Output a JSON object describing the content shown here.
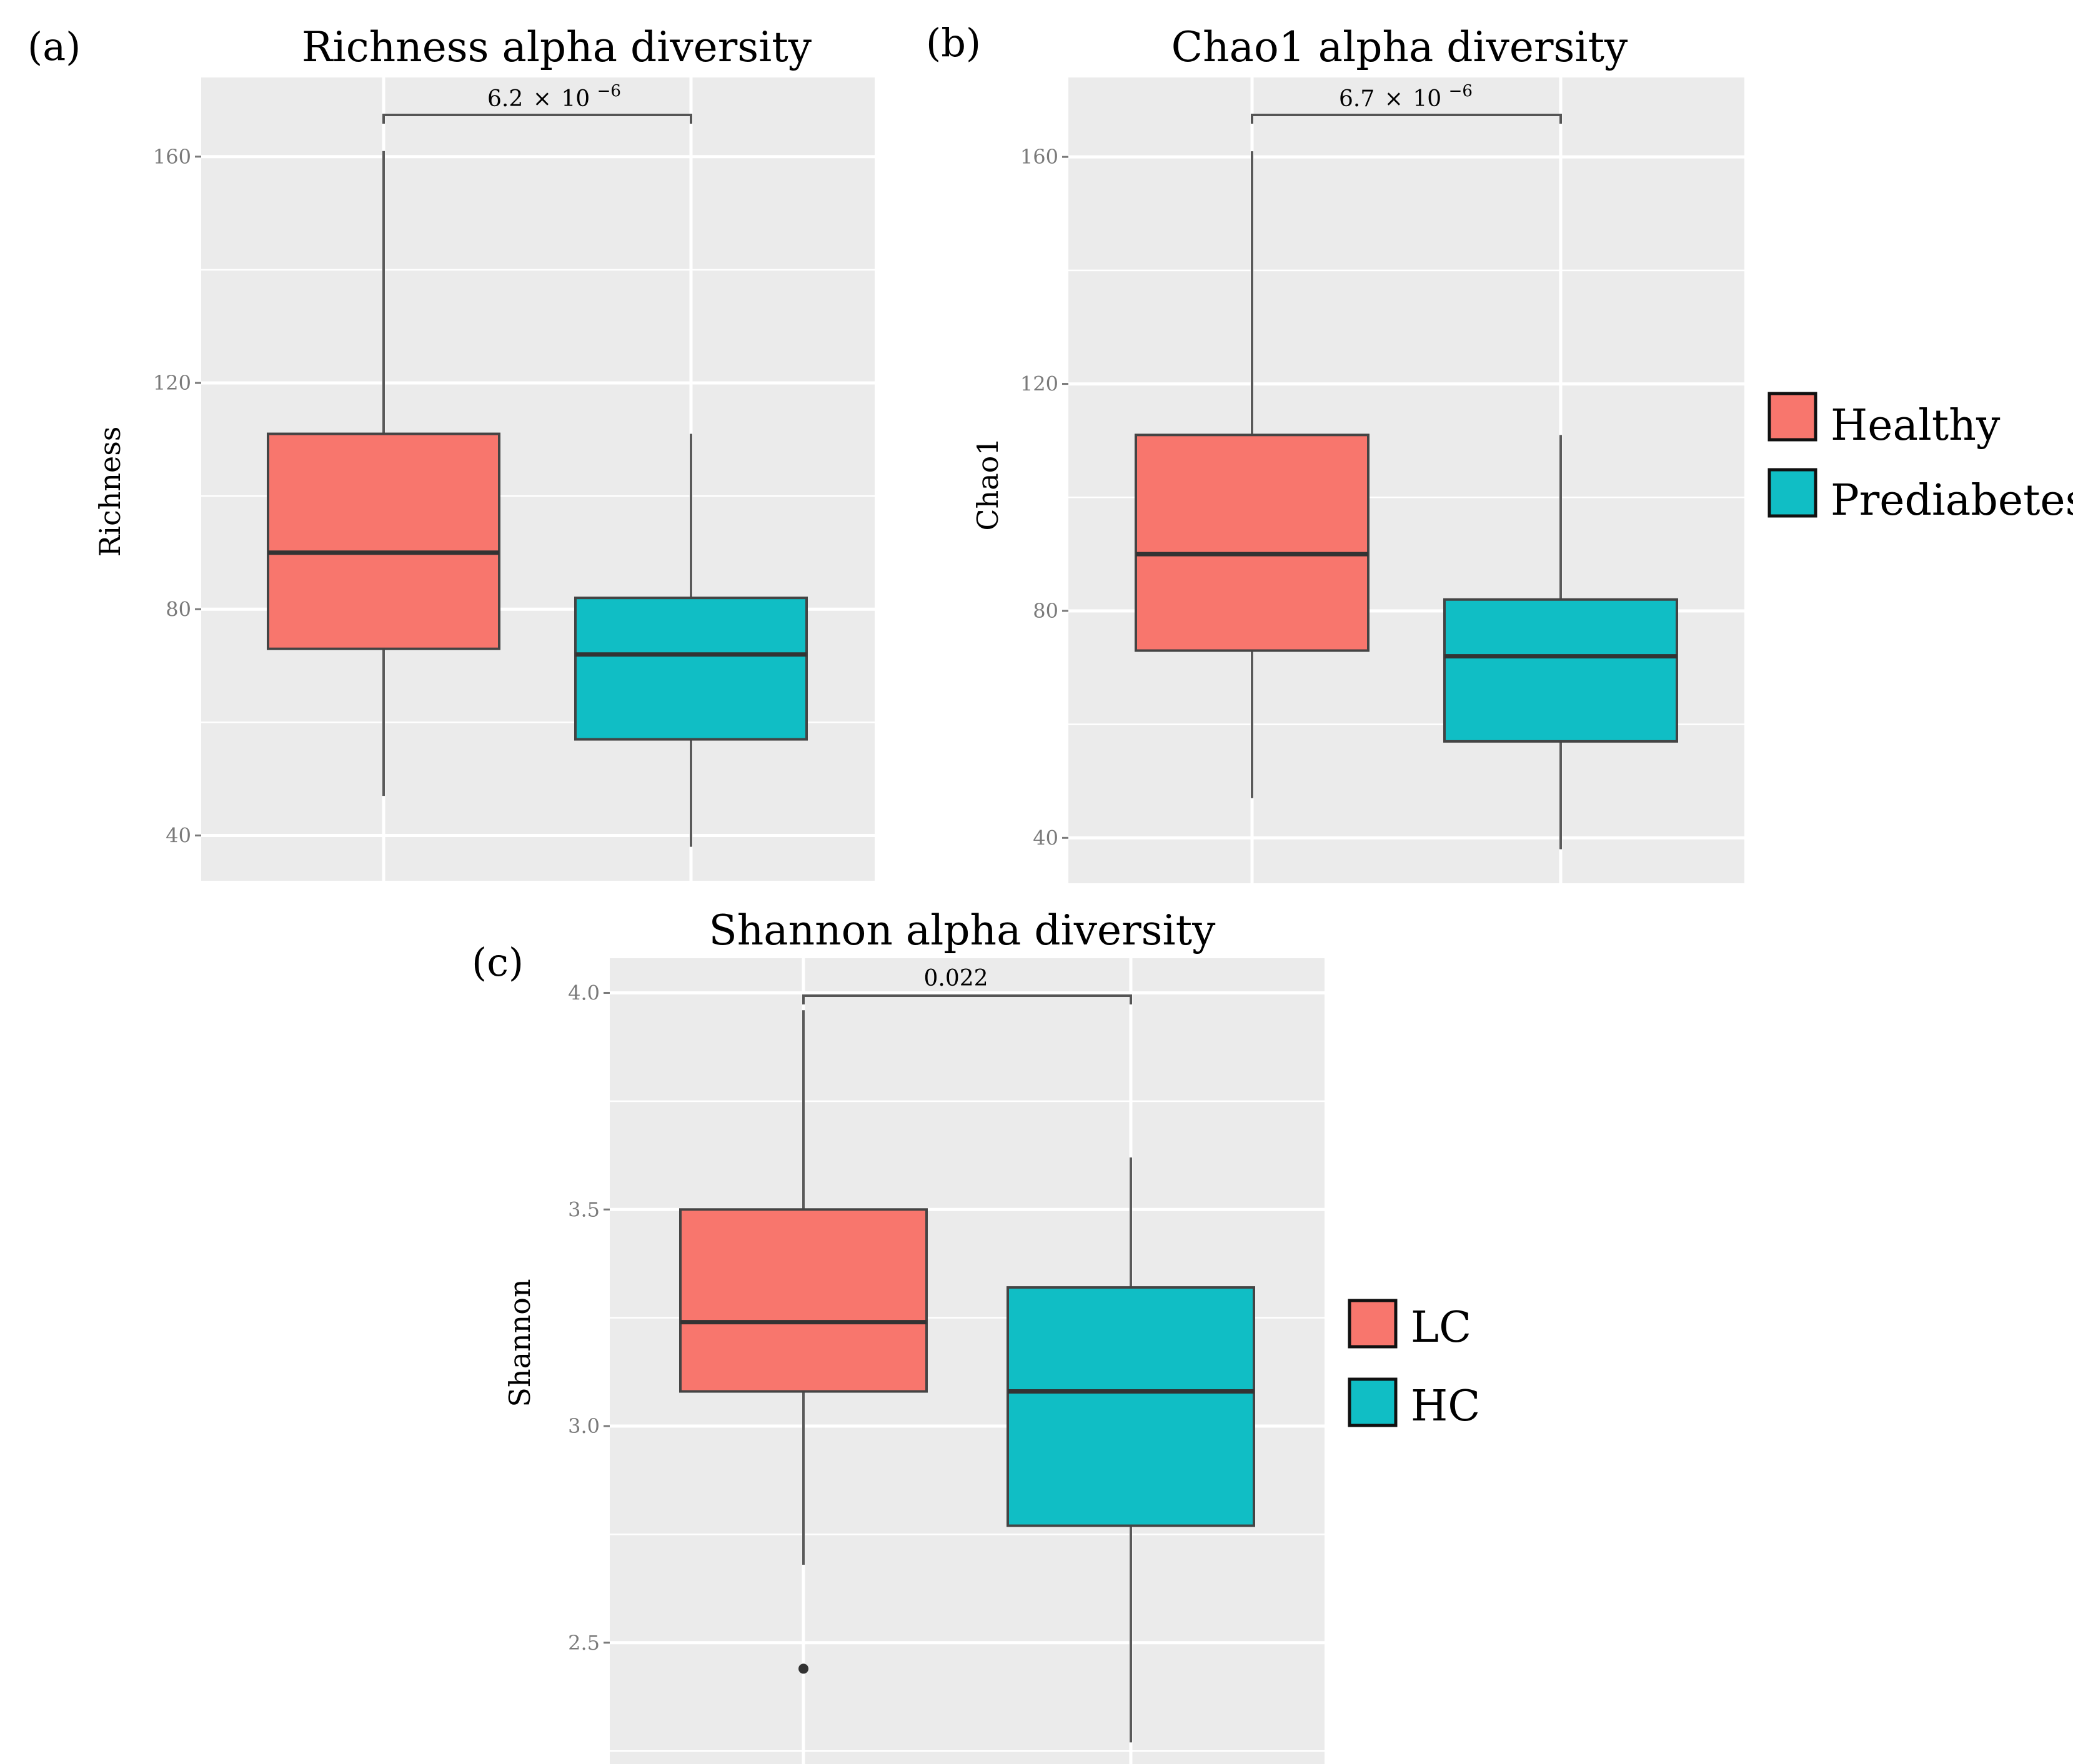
{
  "colors": {
    "group1": "#f8766d",
    "group2": "#10bec5",
    "panel_bg": "#ebebeb",
    "grid": "#ffffff",
    "whisker": "#5a5a5a",
    "median": "#333333"
  },
  "chart_data": [
    {
      "type": "box",
      "panel_label": "(a)",
      "title": "Richness alpha diversity",
      "xlabel": "",
      "ylabel": "Richness",
      "ylim": [
        32,
        174
      ],
      "yticks": [
        40,
        80,
        120,
        160
      ],
      "ytick_labels": [
        "40",
        "80",
        "120",
        "160"
      ],
      "groups": [
        {
          "name": "Healthy",
          "whisker_low": 47,
          "q1": 73,
          "median": 90,
          "q3": 111,
          "whisker_high": 161,
          "outliers": []
        },
        {
          "name": "Prediabetes",
          "whisker_low": 38,
          "q1": 57,
          "median": 72,
          "q3": 82,
          "whisker_high": 111,
          "outliers": []
        }
      ],
      "comparison": {
        "p_value_mantissa": "6.2",
        "p_value_times": "×",
        "p_value_base": "10",
        "p_value_exponent": "−6"
      }
    },
    {
      "type": "box",
      "panel_label": "(b)",
      "title": "Chao1 alpha diversity",
      "xlabel": "",
      "ylabel": "Chao1",
      "ylim": [
        32,
        174
      ],
      "yticks": [
        40,
        80,
        120,
        160
      ],
      "ytick_labels": [
        "40",
        "80",
        "120",
        "160"
      ],
      "groups": [
        {
          "name": "Healthy",
          "whisker_low": 47,
          "q1": 73,
          "median": 90,
          "q3": 111,
          "whisker_high": 161,
          "outliers": []
        },
        {
          "name": "Prediabetes",
          "whisker_low": 38,
          "q1": 57,
          "median": 72,
          "q3": 82,
          "whisker_high": 111,
          "outliers": []
        }
      ],
      "comparison": {
        "p_value_mantissa": "6.7",
        "p_value_times": "×",
        "p_value_base": "10",
        "p_value_exponent": "−6"
      },
      "legend": [
        "Healthy",
        "Prediabetes"
      ]
    },
    {
      "type": "box",
      "panel_label": "(c)",
      "title": "Shannon alpha diversity",
      "xlabel": "",
      "ylabel": "Shannon",
      "ylim": [
        2.22,
        4.08
      ],
      "yticks": [
        2.5,
        3.0,
        3.5,
        4.0
      ],
      "ytick_labels": [
        "2.5",
        "3.0",
        "3.5",
        "4.0"
      ],
      "groups": [
        {
          "name": "LC",
          "whisker_low": 2.68,
          "q1": 3.08,
          "median": 3.24,
          "q3": 3.5,
          "whisker_high": 3.96,
          "outliers": [
            2.44
          ]
        },
        {
          "name": "HC",
          "whisker_low": 2.27,
          "q1": 2.77,
          "median": 3.08,
          "q3": 3.32,
          "whisker_high": 3.62,
          "outliers": []
        }
      ],
      "comparison": {
        "p_value": "0.022"
      },
      "legend": [
        "LC",
        "HC"
      ]
    }
  ]
}
